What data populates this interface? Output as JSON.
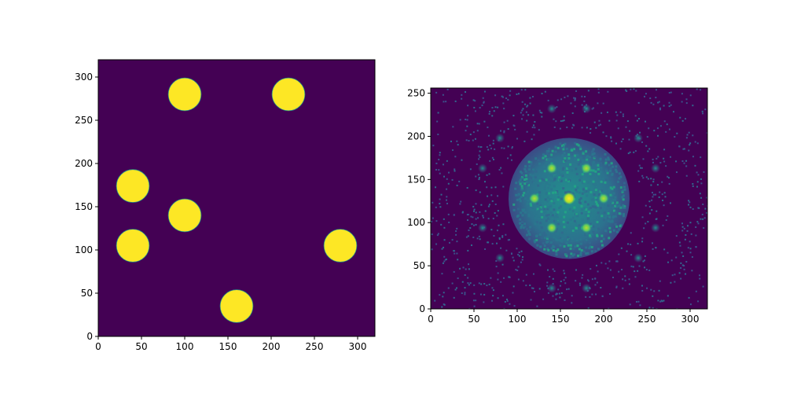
{
  "figure": {
    "background": "#ffffff",
    "colormap": [
      "#440154",
      "#3b528b",
      "#21918c",
      "#5ec962",
      "#fde725"
    ]
  },
  "chart_data": [
    {
      "type": "heatmap",
      "title": "",
      "xlabel": "",
      "ylabel": "",
      "xlim": [
        0,
        320
      ],
      "ylim": [
        0,
        320
      ],
      "xticks": [
        0,
        50,
        100,
        150,
        200,
        250,
        300
      ],
      "yticks": [
        0,
        50,
        100,
        150,
        200,
        250,
        300
      ],
      "description_values": {
        "background_value": 0,
        "disk_value": 1,
        "disk_radius": 19
      },
      "disks": [
        {
          "x": 100,
          "y": 280
        },
        {
          "x": 220,
          "y": 280
        },
        {
          "x": 40,
          "y": 174
        },
        {
          "x": 100,
          "y": 140
        },
        {
          "x": 40,
          "y": 105
        },
        {
          "x": 280,
          "y": 105
        },
        {
          "x": 160,
          "y": 35
        }
      ],
      "colors": {
        "low": "#440154",
        "high": "#fde725"
      }
    },
    {
      "type": "heatmap",
      "title": "",
      "xlabel": "",
      "ylabel": "",
      "xlim": [
        0,
        320
      ],
      "ylim": [
        0,
        256
      ],
      "xticks": [
        0,
        50,
        100,
        150,
        200,
        250,
        300
      ],
      "yticks": [
        0,
        50,
        100,
        150,
        200,
        250
      ],
      "center": {
        "x": 160,
        "y": 128
      },
      "central_disk_radius": 70,
      "peak_value": 1,
      "bright_spots": [
        {
          "x": 160,
          "y": 128
        },
        {
          "x": 140,
          "y": 163
        },
        {
          "x": 180,
          "y": 163
        },
        {
          "x": 120,
          "y": 128
        },
        {
          "x": 200,
          "y": 128
        },
        {
          "x": 140,
          "y": 94
        },
        {
          "x": 180,
          "y": 94
        }
      ],
      "outer_spots": [
        {
          "x": 140,
          "y": 232
        },
        {
          "x": 180,
          "y": 232
        },
        {
          "x": 80,
          "y": 198
        },
        {
          "x": 240,
          "y": 198
        },
        {
          "x": 60,
          "y": 163
        },
        {
          "x": 260,
          "y": 163
        },
        {
          "x": 60,
          "y": 94
        },
        {
          "x": 260,
          "y": 94
        },
        {
          "x": 80,
          "y": 59
        },
        {
          "x": 240,
          "y": 59
        },
        {
          "x": 140,
          "y": 24
        },
        {
          "x": 180,
          "y": 24
        }
      ],
      "colors": {
        "low": "#440154",
        "mid": "#31688e",
        "high": "#fde725"
      }
    }
  ]
}
